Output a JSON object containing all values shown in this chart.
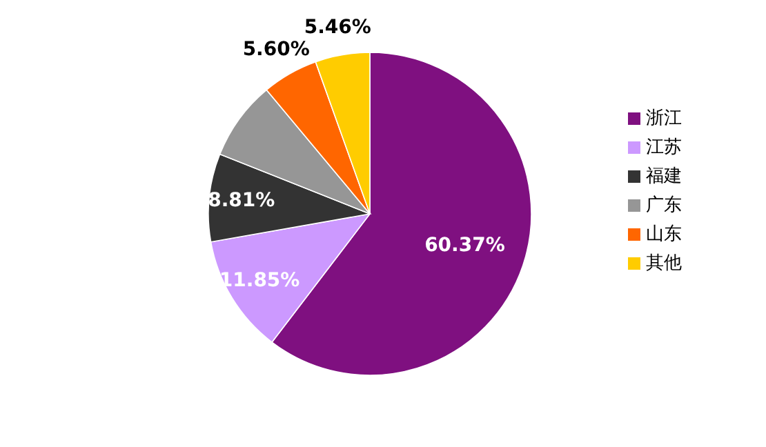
{
  "chart_data": {
    "type": "pie",
    "categories": [
      "浙江",
      "江苏",
      "福建",
      "广东",
      "山东",
      "其他"
    ],
    "values": [
      60.37,
      11.85,
      8.81,
      7.91,
      5.6,
      5.46
    ],
    "value_labels": [
      "60.37%",
      "11.85%",
      "8.81%",
      null,
      "5.60%",
      "5.46%"
    ],
    "colors": [
      "#7f1080",
      "#cc99ff",
      "#333333",
      "#969696",
      "#ff6600",
      "#ffcc00"
    ],
    "legend": "right"
  }
}
